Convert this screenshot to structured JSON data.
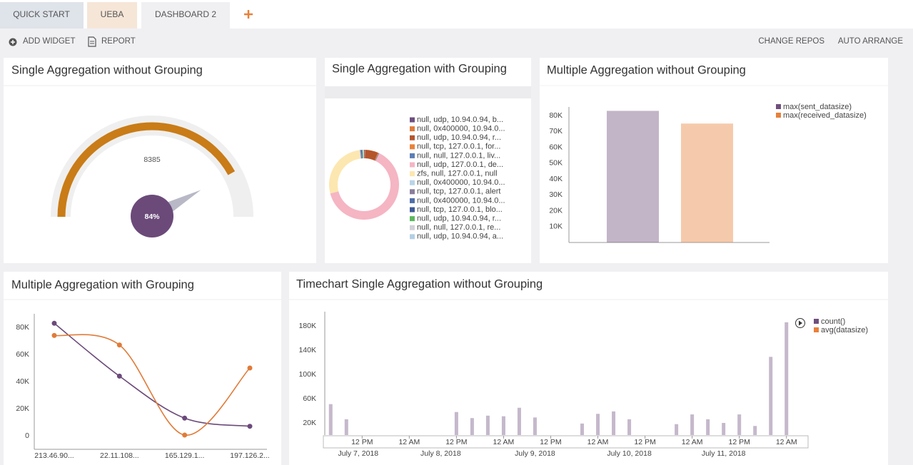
{
  "tabs": [
    "QUICK START",
    "UEBA",
    "DASHBOARD 2"
  ],
  "toolbar": {
    "left": [
      "ADD WIDGET",
      "REPORT"
    ],
    "right": [
      "CHANGE REPOS",
      "AUTO ARRANGE"
    ]
  },
  "chart_data": [
    {
      "type": "gauge",
      "title": "Single Aggregation without Grouping",
      "value": 8385,
      "percent": 84,
      "percent_label": "84%",
      "color": "#c97c17",
      "badge_color": "#6b4a7a"
    },
    {
      "type": "pie",
      "title": "Single Aggregation with Grouping",
      "categories": [
        "null, udp, 10.94.0.94, b...",
        "null, 0x400000, 10.94.0...",
        "null, udp, 10.94.0.94, r...",
        "null, tcp, 127.0.0.1, for...",
        "null, null, 127.0.0.1, liv...",
        "null, udp, 127.0.0.1, de...",
        "zfs, null, 127.0.0.1, null",
        "null, 0x400000, 10.94.0...",
        "null, tcp, 127.0.0.1, alert",
        "null, 0x400000, 10.94.0...",
        "null, tcp, 127.0.0.1, blo...",
        "null, udp, 10.94.0.94, r...",
        "null, null, 127.0.0.1, re...",
        "null, udp, 10.94.0.94, a..."
      ],
      "values": [
        0.3,
        0.3,
        6,
        0.3,
        0.3,
        64,
        27,
        0.3,
        0.3,
        0.3,
        0.3,
        0.3,
        0.3,
        0.3
      ],
      "colors": [
        "#6e4f7f",
        "#e07b39",
        "#b5552c",
        "#e9823a",
        "#5b7fb5",
        "#f5b5c3",
        "#fde7b0",
        "#b9d4e8",
        "#8a7d9c",
        "#4f6fa8",
        "#3f5a96",
        "#5cb85c",
        "#d0d0d8",
        "#b3cfe5"
      ]
    },
    {
      "type": "bar",
      "title": "Multiple Aggregation without Grouping",
      "series": [
        {
          "name": "max(sent_datasize)",
          "color": "#6f4e7c",
          "values": [
            83000
          ]
        },
        {
          "name": "max(received_datasize)",
          "color": "#e8803a",
          "values": [
            75000
          ]
        }
      ],
      "ylim": [
        0,
        85000
      ],
      "yticks": [
        {
          "value": 10000,
          "label": "10K"
        },
        {
          "value": 20000,
          "label": "20K"
        },
        {
          "value": 30000,
          "label": "30K"
        },
        {
          "value": 40000,
          "label": "40K"
        },
        {
          "value": 50000,
          "label": "50K"
        },
        {
          "value": 60000,
          "label": "60K"
        },
        {
          "value": 70000,
          "label": "70K"
        },
        {
          "value": 80000,
          "label": "80K"
        }
      ],
      "legend": "top-right"
    },
    {
      "type": "line",
      "title": "Multiple Aggregation with Grouping",
      "categories": [
        "213.46.90...",
        "22.11.108...",
        "165.129.1...",
        "197.126.2..."
      ],
      "series": [
        {
          "color": "#6b4a7a",
          "values": [
            83000,
            44000,
            13000,
            7000
          ]
        },
        {
          "color": "#e07b39",
          "values": [
            74000,
            67000,
            500,
            50000
          ]
        }
      ],
      "ylim": [
        -10000,
        90000
      ],
      "yticks": [
        0,
        {
          "value": 20000,
          "label": "20K"
        },
        {
          "value": 40000,
          "label": "40K"
        },
        {
          "value": 60000,
          "label": "60K"
        },
        {
          "value": 80000,
          "label": "80K"
        }
      ],
      "smooth": true
    },
    {
      "type": "timechart",
      "title": "Timechart Single Aggregation without Grouping",
      "x": [
        "2018-07-07T04:00",
        "2018-07-07T08:00",
        "2018-07-08T12:00",
        "2018-07-08T16:00",
        "2018-07-08T20:00",
        "2018-07-09T00:00",
        "2018-07-09T04:00",
        "2018-07-09T08:00",
        "2018-07-09T20:00",
        "2018-07-10T00:00",
        "2018-07-10T04:00",
        "2018-07-10T08:00",
        "2018-07-10T20:00",
        "2018-07-11T00:00",
        "2018-07-11T04:00",
        "2018-07-11T08:00",
        "2018-07-11T12:00",
        "2018-07-11T16:00",
        "2018-07-11T20:00",
        "2018-07-12T00:00"
      ],
      "series": [
        {
          "name": "count()",
          "color": "#6f4e7c",
          "values": [
            51000,
            26000,
            38000,
            28000,
            32000,
            31000,
            45000,
            29000,
            19000,
            35000,
            39000,
            26000,
            18000,
            34000,
            26000,
            20000,
            34000,
            15000,
            129000,
            186000
          ]
        },
        {
          "name": "avg(datasize)",
          "color": "#e8803a",
          "values": [
            null,
            null,
            null,
            null,
            null,
            null,
            null,
            null,
            null,
            null,
            null,
            null,
            null,
            null,
            null,
            null,
            null,
            null,
            null,
            null
          ]
        }
      ],
      "xlim": [
        "2018-07-07T02:30",
        "2018-07-12T05:30"
      ],
      "xticks": [
        {
          "value": "2018-07-07T12:00",
          "label": "12 PM"
        },
        {
          "value": "2018-07-08T00:00",
          "label": "12 AM"
        },
        {
          "value": "2018-07-08T12:00",
          "label": "12 PM"
        },
        {
          "value": "2018-07-09T00:00",
          "label": "12 AM"
        },
        {
          "value": "2018-07-09T12:00",
          "label": "12 PM"
        },
        {
          "value": "2018-07-10T00:00",
          "label": "12 AM"
        },
        {
          "value": "2018-07-10T12:00",
          "label": "12 PM"
        },
        {
          "value": "2018-07-11T00:00",
          "label": "12 AM"
        },
        {
          "value": "2018-07-11T12:00",
          "label": "12 PM"
        },
        {
          "value": "2018-07-12T00:00",
          "label": "12 AM"
        }
      ],
      "date_ticks": [
        {
          "value": "2018-07-07T11:00",
          "label": "July 7, 2018"
        },
        {
          "value": "2018-07-08T08:00",
          "label": "July 8, 2018"
        },
        {
          "value": "2018-07-09T08:00",
          "label": "July 9, 2018"
        },
        {
          "value": "2018-07-10T08:00",
          "label": "July 10, 2018"
        },
        {
          "value": "2018-07-11T08:00",
          "label": "July 11, 2018"
        }
      ],
      "ylim": [
        0,
        200000
      ],
      "yticks": [
        {
          "value": 20000,
          "label": "20K"
        },
        {
          "value": 60000,
          "label": "60K"
        },
        {
          "value": 100000,
          "label": "100K"
        },
        {
          "value": 140000,
          "label": "140K"
        },
        {
          "value": 180000,
          "label": "180K"
        }
      ],
      "legend": "top-right"
    }
  ]
}
